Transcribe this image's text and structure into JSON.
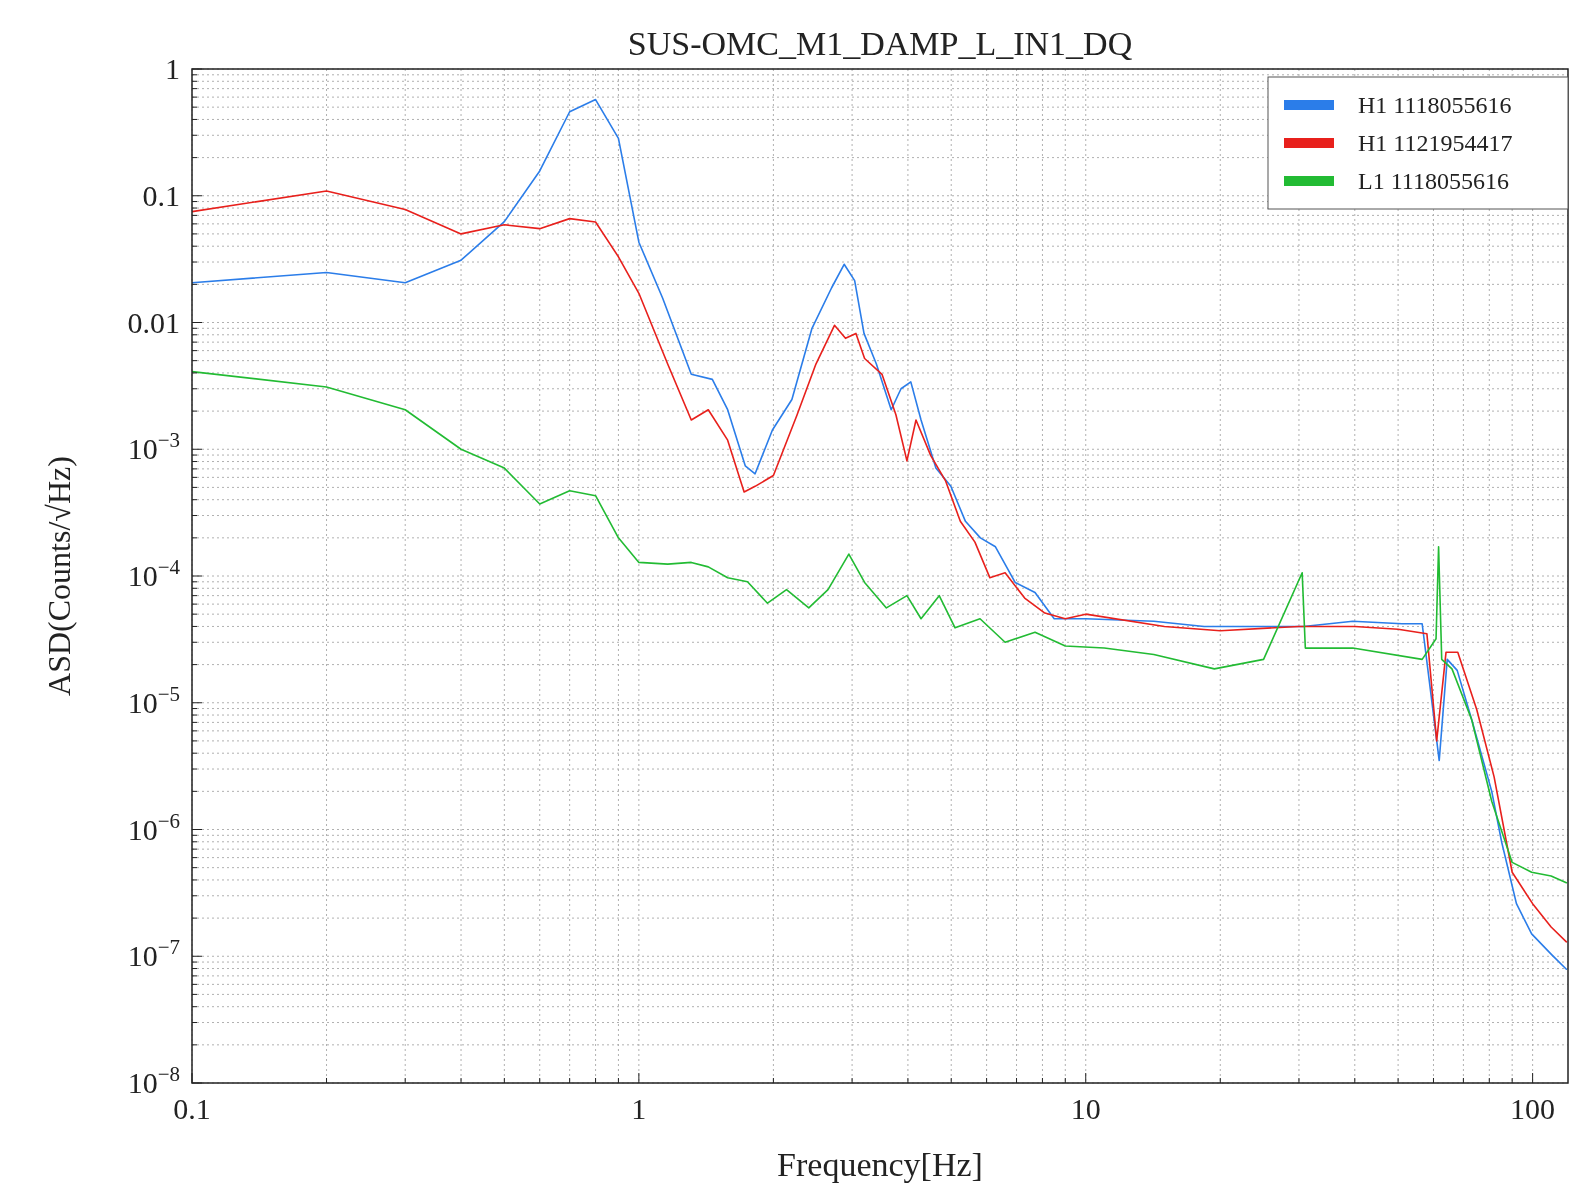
{
  "chart_data": {
    "type": "line",
    "title": "SUS-OMC_M1_DAMP_L_IN1_DQ",
    "xlabel": "Frequency[Hz]",
    "ylabel": "ASD(Counts/√Hz)",
    "log": "xy",
    "grid": true,
    "legend": "top right",
    "xlim": [
      0.1,
      120
    ],
    "ylim": [
      1e-08,
      1
    ],
    "xticks": [
      {
        "value": 0.1,
        "label": "0.1"
      },
      {
        "value": 0.2,
        "label": null
      },
      {
        "value": 0.3,
        "label": null
      },
      {
        "value": 0.4,
        "label": null
      },
      {
        "value": 0.5,
        "label": null
      },
      {
        "value": 0.6,
        "label": null
      },
      {
        "value": 0.7,
        "label": null
      },
      {
        "value": 0.8,
        "label": null
      },
      {
        "value": 0.9,
        "label": null
      },
      1,
      {
        "value": 2,
        "label": null
      },
      {
        "value": 3,
        "label": null
      },
      {
        "value": 4,
        "label": null
      },
      {
        "value": 5,
        "label": null
      },
      {
        "value": 6,
        "label": null
      },
      {
        "value": 7,
        "label": null
      },
      {
        "value": 8,
        "label": null
      },
      {
        "value": 9,
        "label": null
      },
      10,
      {
        "value": 20,
        "label": null
      },
      {
        "value": 30,
        "label": null
      },
      {
        "value": 40,
        "label": null
      },
      {
        "value": 50,
        "label": null
      },
      {
        "value": 60,
        "label": null
      },
      {
        "value": 70,
        "label": null
      },
      {
        "value": 80,
        "label": null
      },
      {
        "value": 90,
        "label": null
      },
      100
    ],
    "yticks": [
      {
        "value": 1e-08,
        "label": "10$^{−8}$"
      },
      {
        "value": 2e-08,
        "label": null
      },
      {
        "value": 3e-08,
        "label": null
      },
      {
        "value": 4e-08,
        "label": null
      },
      {
        "value": 5e-08,
        "label": null
      },
      {
        "value": 6e-08,
        "label": null
      },
      {
        "value": 7e-08,
        "label": null
      },
      {
        "value": 8e-08,
        "label": null
      },
      {
        "value": 9e-08,
        "label": null
      },
      {
        "value": 1e-07,
        "label": "10$^{−7}$"
      },
      {
        "value": 2e-07,
        "label": null
      },
      {
        "value": 3e-07,
        "label": null
      },
      {
        "value": 4e-07,
        "label": null
      },
      {
        "value": 5e-07,
        "label": null
      },
      {
        "value": 6e-07,
        "label": null
      },
      {
        "value": 7e-07,
        "label": null
      },
      {
        "value": 8e-07,
        "label": null
      },
      {
        "value": 9e-07,
        "label": null
      },
      {
        "value": 1e-06,
        "label": "10$^{−6}$"
      },
      {
        "value": 2e-06,
        "label": null
      },
      {
        "value": 3e-06,
        "label": null
      },
      {
        "value": 4e-06,
        "label": null
      },
      {
        "value": 5e-06,
        "label": null
      },
      {
        "value": 6e-06,
        "label": null
      },
      {
        "value": 7e-06,
        "label": null
      },
      {
        "value": 8e-06,
        "label": null
      },
      {
        "value": 9e-06,
        "label": null
      },
      {
        "value": 1e-05,
        "label": "10$^{−5}$"
      },
      {
        "value": 2e-05,
        "label": null
      },
      {
        "value": 3e-05,
        "label": null
      },
      {
        "value": 4e-05,
        "label": null
      },
      {
        "value": 5e-05,
        "label": null
      },
      {
        "value": 6e-05,
        "label": null
      },
      {
        "value": 7e-05,
        "label": null
      },
      {
        "value": 8e-05,
        "label": null
      },
      {
        "value": 9e-05,
        "label": null
      },
      {
        "value": 0.0001,
        "label": "10$^{−4}$"
      },
      {
        "value": 0.0002,
        "label": null
      },
      {
        "value": 0.0003,
        "label": null
      },
      {
        "value": 0.0004,
        "label": null
      },
      {
        "value": 0.0005,
        "label": null
      },
      {
        "value": 0.0006,
        "label": null
      },
      {
        "value": 0.0007,
        "label": null
      },
      {
        "value": 0.0008,
        "label": null
      },
      {
        "value": 0.0009,
        "label": null
      },
      {
        "value": 0.001,
        "label": "10$^{−3}$"
      },
      {
        "value": 0.002,
        "label": null
      },
      {
        "value": 0.003,
        "label": null
      },
      {
        "value": 0.004,
        "label": null
      },
      {
        "value": 0.005,
        "label": null
      },
      {
        "value": 0.006,
        "label": null
      },
      {
        "value": 0.007,
        "label": null
      },
      {
        "value": 0.008,
        "label": null
      },
      {
        "value": 0.009,
        "label": null
      },
      0.01,
      {
        "value": 0.02,
        "label": null
      },
      {
        "value": 0.03,
        "label": null
      },
      {
        "value": 0.04,
        "label": null
      },
      {
        "value": 0.05,
        "label": null
      },
      {
        "value": 0.06,
        "label": null
      },
      {
        "value": 0.07,
        "label": null
      },
      {
        "value": 0.08,
        "label": null
      },
      {
        "value": 0.09,
        "label": null
      },
      0.1,
      {
        "value": 0.2,
        "label": null
      },
      {
        "value": 0.3,
        "label": null
      },
      {
        "value": 0.4,
        "label": null
      },
      {
        "value": 0.5,
        "label": null
      },
      {
        "value": 0.6,
        "label": null
      },
      {
        "value": 0.7,
        "label": null
      },
      {
        "value": 0.8,
        "label": null
      },
      {
        "value": 0.9,
        "label": null
      },
      1
    ],
    "series": [
      {
        "name": "H1 1118055616",
        "color": "#2b7de9",
        "x": [
          0.1,
          0.2,
          0.3,
          0.4,
          0.5,
          0.6,
          0.7,
          0.8,
          0.9,
          1.0,
          1.13,
          1.31,
          1.46,
          1.58,
          1.73,
          1.82,
          1.99,
          2.2,
          2.44,
          2.7,
          2.88,
          3.04,
          3.19,
          3.4,
          3.67,
          3.86,
          4.06,
          4.28,
          4.62,
          4.99,
          5.38,
          5.81,
          6.28,
          6.95,
          7.7,
          8.5,
          10,
          14.2,
          18.4,
          30.7,
          39.6,
          51,
          56.6,
          61.8,
          64.4,
          67.8,
          73.1,
          81,
          85.3,
          92,
          99.5,
          110,
          119
        ],
        "values": [
          0.0206,
          0.0248,
          0.0206,
          0.031,
          0.0625,
          0.157,
          0.46,
          0.574,
          0.284,
          0.043,
          0.0156,
          0.0039,
          0.00356,
          0.00205,
          0.00074,
          0.00064,
          0.00142,
          0.00247,
          0.009,
          0.0188,
          0.0288,
          0.0214,
          0.0082,
          0.0047,
          0.00205,
          0.003,
          0.0034,
          0.0017,
          0.00071,
          0.00051,
          0.00027,
          0.0002,
          0.00017,
          8.9e-05,
          7.4e-05,
          4.6e-05,
          4.6e-05,
          4.4e-05,
          4e-05,
          4e-05,
          4.4e-05,
          4.2e-05,
          4.2e-05,
          3.5e-06,
          2.2e-05,
          1.8e-05,
          7.3e-06,
          2e-06,
          7.9e-07,
          2.6e-07,
          1.5e-07,
          1.04e-07,
          7.9e-08
        ]
      },
      {
        "name": "H1 1121954417",
        "color": "#e8201c",
        "x": [
          0.1,
          0.2,
          0.3,
          0.4,
          0.5,
          0.6,
          0.7,
          0.8,
          0.9,
          1.0,
          1.16,
          1.31,
          1.43,
          1.58,
          1.72,
          1.82,
          2.0,
          2.26,
          2.49,
          2.74,
          2.9,
          3.06,
          3.2,
          3.5,
          3.76,
          3.98,
          4.17,
          4.5,
          4.86,
          5.24,
          5.65,
          6.1,
          6.6,
          7.3,
          8.1,
          9,
          10,
          15,
          20,
          30,
          40,
          50,
          58,
          61,
          64,
          68,
          75,
          82,
          90,
          100,
          110,
          119
        ],
        "values": [
          0.075,
          0.109,
          0.078,
          0.05,
          0.059,
          0.055,
          0.066,
          0.062,
          0.033,
          0.017,
          0.0047,
          0.0017,
          0.00205,
          0.00118,
          0.00046,
          0.00051,
          0.00062,
          0.00187,
          0.0047,
          0.0095,
          0.0075,
          0.0082,
          0.0052,
          0.0039,
          0.00187,
          0.00081,
          0.0017,
          0.00089,
          0.00056,
          0.00027,
          0.000185,
          9.7e-05,
          0.000106,
          6.7e-05,
          5.1e-05,
          4.6e-05,
          5e-05,
          4e-05,
          3.7e-05,
          4e-05,
          4e-05,
          3.8e-05,
          3.5e-05,
          5e-06,
          2.5e-05,
          2.5e-05,
          8.8e-06,
          2.6e-06,
          4.6e-07,
          2.6e-07,
          1.7e-07,
          1.3e-07
        ]
      },
      {
        "name": "L1 1118055616",
        "color": "#22bb33",
        "x": [
          0.1,
          0.2,
          0.3,
          0.4,
          0.5,
          0.6,
          0.7,
          0.8,
          0.9,
          1.0,
          1.16,
          1.31,
          1.43,
          1.58,
          1.75,
          1.94,
          2.14,
          2.4,
          2.65,
          2.95,
          3.2,
          3.58,
          3.98,
          4.28,
          4.7,
          5.1,
          5.8,
          6.6,
          7.7,
          9,
          11,
          14.2,
          19.4,
          25,
          30.5,
          31,
          39.6,
          56.6,
          60.8,
          61.6,
          62.6,
          66,
          73.1,
          81,
          90,
          99.5,
          110,
          119
        ],
        "values": [
          0.0041,
          0.0031,
          0.00205,
          0.001,
          0.00071,
          0.00037,
          0.00047,
          0.00043,
          0.0002,
          0.000128,
          0.000124,
          0.000128,
          0.000118,
          9.7e-05,
          9e-05,
          6.1e-05,
          7.8e-05,
          5.6e-05,
          7.8e-05,
          0.000149,
          8.9e-05,
          5.6e-05,
          7e-05,
          4.6e-05,
          7e-05,
          3.9e-05,
          4.6e-05,
          3e-05,
          3.6e-05,
          2.8e-05,
          2.7e-05,
          2.4e-05,
          1.85e-05,
          2.2e-05,
          0.000106,
          2.7e-05,
          2.7e-05,
          2.2e-05,
          3.2e-05,
          0.00017,
          2.2e-05,
          1.85e-05,
          7.3e-06,
          1.67e-06,
          5.5e-07,
          4.6e-07,
          4.3e-07,
          3.8e-07
        ]
      }
    ]
  }
}
